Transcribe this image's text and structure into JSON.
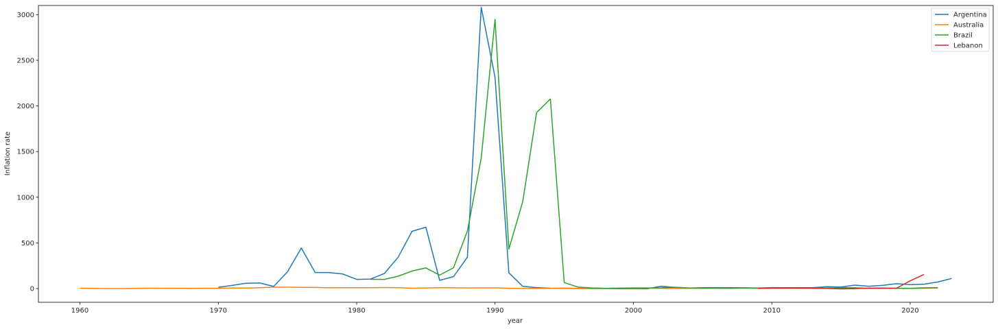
{
  "chart_data": {
    "type": "line",
    "title": "",
    "xlabel": "year",
    "ylabel": "Inflation rate",
    "xlim": [
      1957,
      2026
    ],
    "ylim": [
      -150,
      3100
    ],
    "xticks": [
      1960,
      1970,
      1980,
      1990,
      2000,
      2010,
      2020
    ],
    "yticks": [
      0,
      500,
      1000,
      1500,
      2000,
      2500,
      3000
    ],
    "grid": false,
    "legend_position": "top-right",
    "series": [
      {
        "name": "Argentina",
        "color": "#1f77b4",
        "points": [
          [
            1970,
            13.6
          ],
          [
            1971,
            34.7
          ],
          [
            1972,
            58.4
          ],
          [
            1973,
            61.2
          ],
          [
            1974,
            23.5
          ],
          [
            1975,
            182.9
          ],
          [
            1976,
            444
          ],
          [
            1977,
            176
          ],
          [
            1978,
            175.5
          ],
          [
            1979,
            159.5
          ],
          [
            1980,
            100.8
          ],
          [
            1981,
            104.5
          ],
          [
            1982,
            164.8
          ],
          [
            1983,
            343.8
          ],
          [
            1984,
            626.7
          ],
          [
            1985,
            672.2
          ],
          [
            1986,
            90.1
          ],
          [
            1987,
            131.3
          ],
          [
            1988,
            343
          ],
          [
            1989,
            3079.8
          ],
          [
            1990,
            2314
          ],
          [
            1991,
            171.7
          ],
          [
            1992,
            24.9
          ],
          [
            1993,
            10.6
          ],
          [
            1994,
            4.2
          ],
          [
            1995,
            3.4
          ],
          [
            1996,
            0.2
          ],
          [
            1997,
            0.5
          ],
          [
            1998,
            0.9
          ],
          [
            1999,
            -1.2
          ],
          [
            2000,
            -0.9
          ],
          [
            2001,
            -1.1
          ],
          [
            2002,
            25.9
          ],
          [
            2003,
            13.4
          ],
          [
            2004,
            4.4
          ],
          [
            2005,
            9.6
          ],
          [
            2006,
            10.9
          ],
          [
            2007,
            8.8
          ],
          [
            2008,
            8.6
          ],
          [
            2009,
            6.3
          ],
          [
            2010,
            10.8
          ],
          [
            2011,
            9.8
          ],
          [
            2012,
            10
          ],
          [
            2013,
            10.6
          ],
          [
            2014,
            21.4
          ],
          [
            2015,
            16.7
          ],
          [
            2016,
            37.5
          ],
          [
            2017,
            25.7
          ],
          [
            2018,
            34.3
          ],
          [
            2019,
            53.5
          ],
          [
            2020,
            42
          ],
          [
            2021,
            48.4
          ],
          [
            2022,
            72.4
          ],
          [
            2023,
            111
          ]
        ]
      },
      {
        "name": "Australia",
        "color": "#ff7f0e",
        "points": [
          [
            1960,
            3.7
          ],
          [
            1961,
            2.3
          ],
          [
            1962,
            -0.4
          ],
          [
            1963,
            0.4
          ],
          [
            1964,
            2.4
          ],
          [
            1965,
            4
          ],
          [
            1966,
            3
          ],
          [
            1967,
            3.2
          ],
          [
            1968,
            2.5
          ],
          [
            1969,
            3.3
          ],
          [
            1970,
            3.4
          ],
          [
            1971,
            6.1
          ],
          [
            1972,
            5.9
          ],
          [
            1973,
            9.5
          ],
          [
            1974,
            15.4
          ],
          [
            1975,
            15.2
          ],
          [
            1976,
            13.3
          ],
          [
            1977,
            12.3
          ],
          [
            1978,
            8
          ],
          [
            1979,
            9.1
          ],
          [
            1980,
            10.1
          ],
          [
            1981,
            9.5
          ],
          [
            1982,
            11.4
          ],
          [
            1983,
            10
          ],
          [
            1984,
            4
          ],
          [
            1985,
            6.7
          ],
          [
            1986,
            9.1
          ],
          [
            1987,
            8.5
          ],
          [
            1988,
            7.2
          ],
          [
            1989,
            7.5
          ],
          [
            1990,
            7.3
          ],
          [
            1991,
            3.2
          ],
          [
            1992,
            1
          ],
          [
            1993,
            1.8
          ],
          [
            1994,
            1.9
          ],
          [
            1995,
            4.6
          ],
          [
            1996,
            2.6
          ],
          [
            1997,
            0.3
          ],
          [
            1998,
            0.9
          ],
          [
            1999,
            1.5
          ],
          [
            2000,
            4.5
          ],
          [
            2001,
            4.4
          ],
          [
            2002,
            3
          ],
          [
            2003,
            2.7
          ],
          [
            2004,
            2.3
          ],
          [
            2005,
            2.7
          ],
          [
            2006,
            3.6
          ],
          [
            2007,
            2.3
          ],
          [
            2008,
            4.4
          ],
          [
            2009,
            1.8
          ],
          [
            2010,
            2.9
          ],
          [
            2011,
            3.3
          ],
          [
            2012,
            1.8
          ],
          [
            2013,
            2.4
          ],
          [
            2014,
            2.5
          ],
          [
            2015,
            1.5
          ],
          [
            2016,
            1.3
          ],
          [
            2017,
            2
          ],
          [
            2018,
            1.9
          ],
          [
            2019,
            1.6
          ],
          [
            2020,
            0.8
          ],
          [
            2021,
            2.9
          ],
          [
            2022,
            6.6
          ]
        ]
      },
      {
        "name": "Brazil",
        "color": "#2ca02c",
        "points": [
          [
            1981,
            101.7
          ],
          [
            1982,
            100.5
          ],
          [
            1983,
            135
          ],
          [
            1984,
            192.1
          ],
          [
            1985,
            226
          ],
          [
            1986,
            147.1
          ],
          [
            1987,
            228.3
          ],
          [
            1988,
            629.1
          ],
          [
            1989,
            1430.7
          ],
          [
            1990,
            2947.7
          ],
          [
            1991,
            432.8
          ],
          [
            1992,
            951.6
          ],
          [
            1993,
            1927.4
          ],
          [
            1994,
            2075.9
          ],
          [
            1995,
            66
          ],
          [
            1996,
            15.8
          ],
          [
            1997,
            6.9
          ],
          [
            1998,
            3.2
          ],
          [
            1999,
            4.9
          ],
          [
            2000,
            7
          ],
          [
            2001,
            6.8
          ],
          [
            2002,
            8.5
          ],
          [
            2003,
            14.7
          ],
          [
            2004,
            6.6
          ],
          [
            2005,
            6.9
          ],
          [
            2006,
            4.2
          ],
          [
            2007,
            3.6
          ],
          [
            2008,
            5.7
          ],
          [
            2009,
            4.9
          ],
          [
            2010,
            5
          ],
          [
            2011,
            6.6
          ],
          [
            2012,
            5.4
          ],
          [
            2013,
            6.2
          ],
          [
            2014,
            6.3
          ],
          [
            2015,
            9
          ],
          [
            2016,
            8.7
          ],
          [
            2017,
            3.4
          ],
          [
            2018,
            3.7
          ],
          [
            2019,
            3.7
          ],
          [
            2020,
            3.2
          ],
          [
            2021,
            8.3
          ],
          [
            2022,
            9.3
          ]
        ]
      },
      {
        "name": "Lebanon",
        "color": "#d62728",
        "points": [
          [
            2009,
            1.2
          ],
          [
            2010,
            4
          ],
          [
            2011,
            5
          ],
          [
            2012,
            6.6
          ],
          [
            2013,
            4.8
          ],
          [
            2014,
            1.9
          ],
          [
            2015,
            -3.7
          ],
          [
            2016,
            -0.8
          ],
          [
            2017,
            4.5
          ],
          [
            2018,
            6.1
          ],
          [
            2019,
            2.9
          ],
          [
            2020,
            84.9
          ],
          [
            2021,
            154.8
          ]
        ]
      }
    ]
  }
}
